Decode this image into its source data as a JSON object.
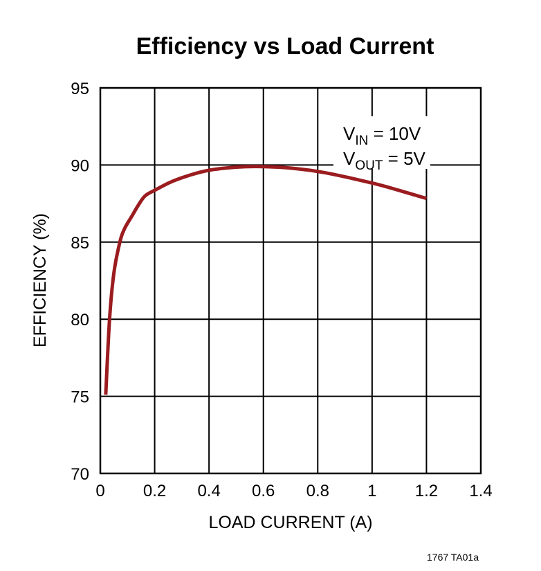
{
  "chart_data": {
    "type": "line",
    "title": "Efficiency vs Load Current",
    "xlabel": "LOAD CURRENT (A)",
    "ylabel": "EFFICIENCY (%)",
    "xlim": [
      0,
      1.4
    ],
    "ylim": [
      70,
      95
    ],
    "xticks": [
      0,
      0.2,
      0.4,
      0.6,
      0.8,
      1,
      1.2,
      1.4
    ],
    "xtick_labels": [
      "0",
      "0.2",
      "0.4",
      "0.6",
      "0.8",
      "1",
      "1.2",
      "1.4"
    ],
    "yticks": [
      70,
      75,
      80,
      85,
      90,
      95
    ],
    "ytick_labels": [
      "70",
      "75",
      "80",
      "85",
      "90",
      "95"
    ],
    "grid": true,
    "series": [
      {
        "color": "#9b1c1f",
        "x": [
          0.02,
          0.034,
          0.05,
          0.072,
          0.09,
          0.115,
          0.14,
          0.165,
          0.2,
          0.26,
          0.327,
          0.4,
          0.5,
          0.58,
          0.7,
          0.827,
          1.0,
          1.1,
          1.2
        ],
        "y": [
          75.1,
          80.0,
          83.0,
          85.0,
          85.9,
          86.65,
          87.4,
          88.0,
          88.36,
          88.9,
          89.33,
          89.66,
          89.86,
          89.9,
          89.8,
          89.5,
          88.83,
          88.35,
          87.83
        ]
      }
    ],
    "annotation": {
      "line1_main": "V",
      "line1_sub": "IN",
      "line1_rest": " = 10V",
      "line2_main": "V",
      "line2_sub": "OUT",
      "line2_rest": " = 5V"
    },
    "figure_id": "1767 TA01a"
  }
}
